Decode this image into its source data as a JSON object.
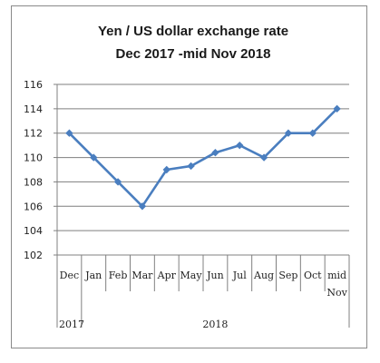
{
  "chart_data": {
    "type": "line",
    "title_lines": [
      "Yen / US dollar exchange rate",
      "Dec 2017 -mid Nov 2018"
    ],
    "x": [
      "Dec",
      "Jan",
      "Feb",
      "Mar",
      "Apr",
      "May",
      "Jun",
      "Jul",
      "Aug",
      "Sep",
      "Oct",
      "mid Nov"
    ],
    "x_tick_lines": [
      [
        "Dec"
      ],
      [
        "Jan"
      ],
      [
        "Feb"
      ],
      [
        "Mar"
      ],
      [
        "Apr"
      ],
      [
        "May"
      ],
      [
        "Jun"
      ],
      [
        "Jul"
      ],
      [
        "Aug"
      ],
      [
        "Sep"
      ],
      [
        "Oct"
      ],
      [
        "mid",
        "Nov"
      ]
    ],
    "year_groups": [
      {
        "label": "2017",
        "from": 0,
        "to": 0
      },
      {
        "label": "2018",
        "from": 1,
        "to": 11
      }
    ],
    "series": [
      {
        "values": [
          112.0,
          110.0,
          108.0,
          106.0,
          109.0,
          109.3,
          110.4,
          111.0,
          110.0,
          112.0,
          112.0,
          114.0
        ],
        "color": "#4a7ebf"
      }
    ],
    "ylim": [
      102,
      116
    ],
    "ytick_step": 2,
    "yticks": [
      "102",
      "104",
      "106",
      "108",
      "110",
      "112",
      "114",
      "116"
    ],
    "grid": true,
    "legend": "none",
    "colors": {
      "line": "#4a7ebf",
      "grid": "#7f7f7f",
      "axis": "#808080",
      "frame": "#8a8a8a"
    }
  }
}
